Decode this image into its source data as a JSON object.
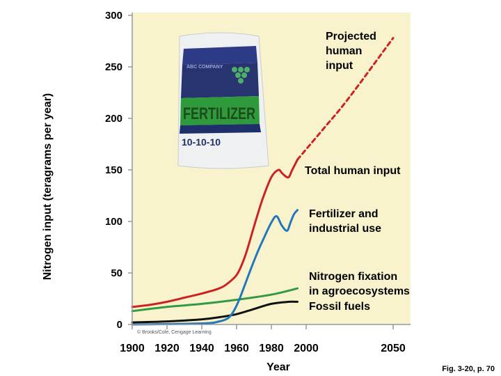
{
  "chart_data": {
    "type": "line",
    "ylabel": "Nitrogen input (teragrams per year)",
    "xlabel": "Year",
    "ylim": [
      0,
      300
    ],
    "xlim": [
      1900,
      2060
    ],
    "yticks": [
      0,
      50,
      100,
      150,
      200,
      250,
      300
    ],
    "xticks": [
      1900,
      1920,
      1940,
      1960,
      1980,
      2000,
      2050
    ],
    "xtick_labels": [
      "1900",
      "1920",
      "1940",
      "1960",
      "1980",
      "2000",
      "2050"
    ],
    "grid": false,
    "legend": "none (inline labels)",
    "background_color": "#f8f3cc",
    "series": [
      {
        "name": "Total human input",
        "color": "#cc2222",
        "style": "solid",
        "x": [
          1900,
          1910,
          1920,
          1930,
          1940,
          1950,
          1955,
          1960,
          1963,
          1966,
          1970,
          1975,
          1980,
          1984,
          1986,
          1988,
          1990,
          1992,
          1995
        ],
        "y": [
          17,
          19,
          22,
          26,
          30,
          35,
          40,
          48,
          58,
          72,
          95,
          122,
          143,
          150,
          147,
          144,
          143,
          150,
          160
        ]
      },
      {
        "name": "Projected human input",
        "color": "#cc2222",
        "style": "dashed",
        "x": [
          1995,
          2000,
          2010,
          2020,
          2030,
          2040,
          2050
        ],
        "y": [
          160,
          170,
          190,
          210,
          232,
          255,
          278
        ]
      },
      {
        "name": "Fertilizer and industrial use",
        "color": "#2277bb",
        "style": "solid",
        "x": [
          1900,
          1940,
          1950,
          1955,
          1958,
          1961,
          1964,
          1968,
          1972,
          1976,
          1980,
          1983,
          1986,
          1989,
          1991,
          1993,
          1995
        ],
        "y": [
          0,
          1,
          3,
          6,
          12,
          22,
          35,
          53,
          70,
          85,
          99,
          105,
          96,
          91,
          99,
          107,
          111
        ]
      },
      {
        "name": "Nitrogen fixation in agroecosystems",
        "color": "#339944",
        "style": "solid",
        "x": [
          1900,
          1920,
          1940,
          1960,
          1980,
          1995
        ],
        "y": [
          13,
          17,
          20,
          24,
          29,
          35
        ]
      },
      {
        "name": "Fossil fuels",
        "color": "#111111",
        "style": "solid",
        "x": [
          1900,
          1920,
          1940,
          1950,
          1960,
          1970,
          1980,
          1990,
          1995
        ],
        "y": [
          2,
          3,
          5,
          7,
          10,
          15,
          20,
          22,
          22
        ]
      }
    ],
    "annotations": [
      {
        "lines": [
          "Projected",
          "human",
          "input"
        ]
      },
      {
        "lines": [
          "Total human input"
        ]
      },
      {
        "lines": [
          "Fertilizer and",
          "industrial use"
        ]
      },
      {
        "lines": [
          "Nitrogen fixation",
          "in agroecosystems"
        ]
      },
      {
        "lines": [
          "Fossil fuels"
        ]
      }
    ]
  },
  "image_content": {
    "bag_brand": "ABC COMPANY",
    "bag_title": "FERTILIZER",
    "bag_grade": "10-10-10"
  },
  "credit": "© Brooks/Cole, Cengage Learning",
  "figure_caption": "Fig. 3-20, p. 70"
}
